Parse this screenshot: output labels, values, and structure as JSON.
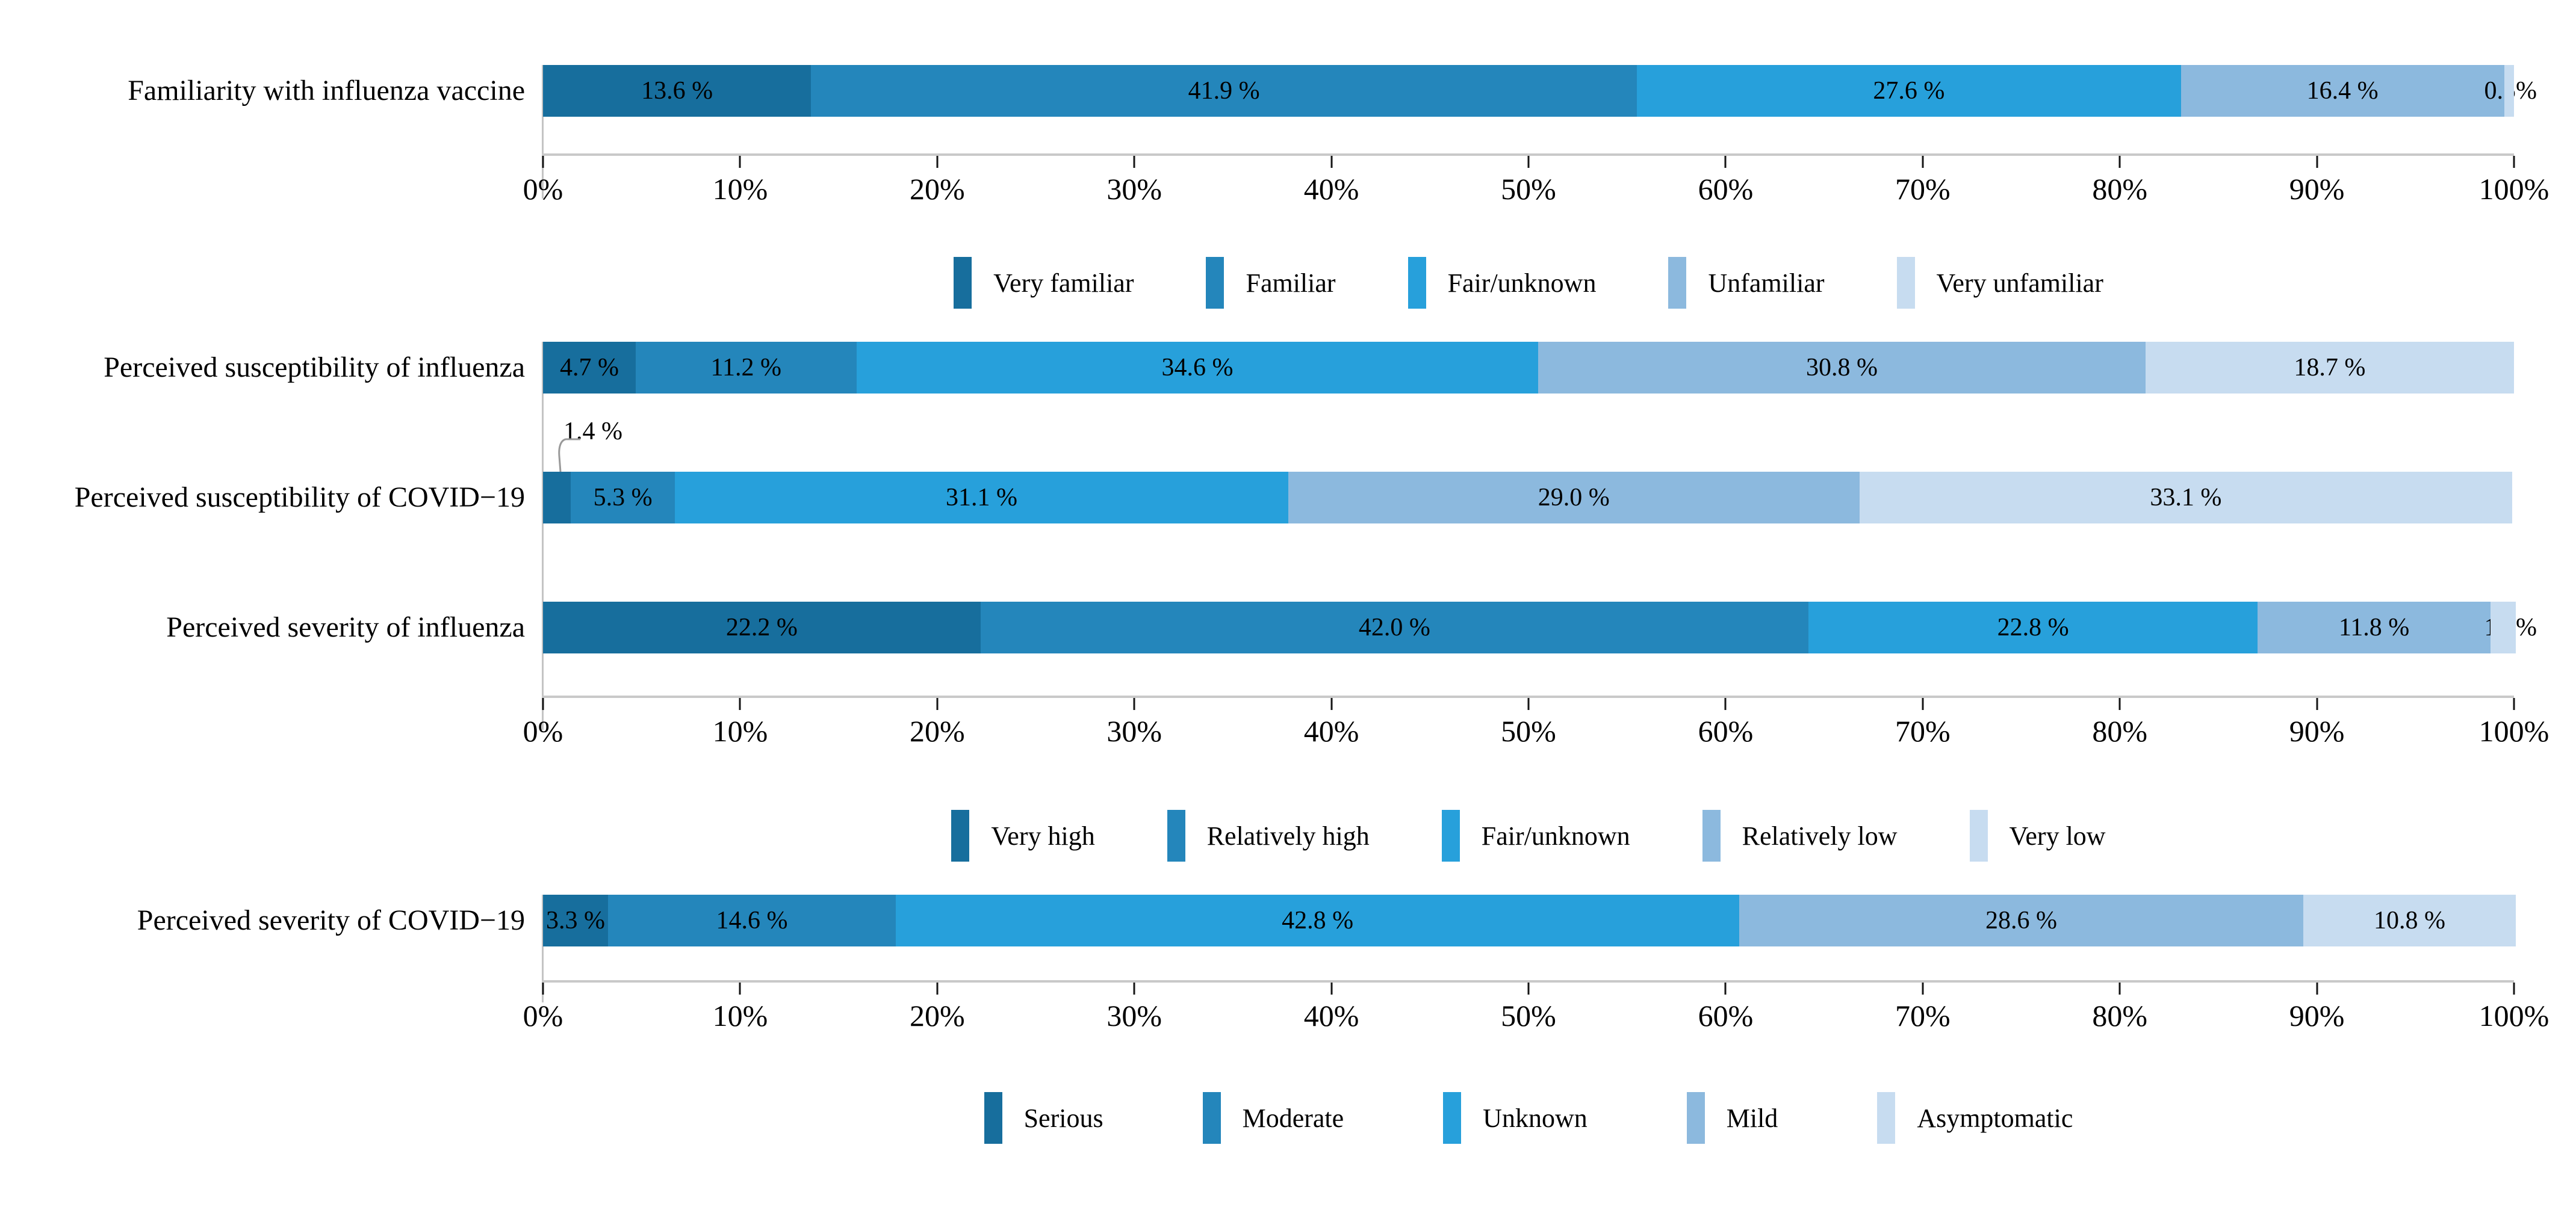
{
  "palette": {
    "segment_colors": [
      "#176e9d",
      "#2486bb",
      "#27a0db",
      "#8cb9de",
      "#c7dcf0"
    ],
    "axis_line": "#c9c9c9",
    "axis_vline": "#c4c4c4",
    "tick_mark": "#151515",
    "leader_line": "#999999",
    "label_text": "#000000"
  },
  "chart_data": [
    {
      "type": "bar",
      "orientation": "horizontal_stacked",
      "title": "",
      "categories": [
        "Familiarity with influenza vaccine"
      ],
      "series": [
        {
          "name": "Very familiar",
          "values": [
            13.6
          ]
        },
        {
          "name": "Familiar",
          "values": [
            41.9
          ]
        },
        {
          "name": "Fair/unknown",
          "values": [
            27.6
          ]
        },
        {
          "name": "Unfamiliar",
          "values": [
            16.4
          ]
        },
        {
          "name": "Very unfamiliar",
          "values": [
            0.5
          ]
        }
      ],
      "value_label_texts": [
        [
          "13.6 %",
          "41.9 %",
          "27.6 %",
          "16.4 %",
          "0.5%"
        ]
      ],
      "label_placements": [
        [
          "center",
          "center",
          "center",
          "center",
          "edge"
        ]
      ],
      "xlim": [
        0,
        100
      ],
      "xticks": [
        "0%",
        "10%",
        "20%",
        "30%",
        "40%",
        "50%",
        "60%",
        "70%",
        "80%",
        "90%",
        "100%"
      ],
      "legend": [
        "Very familiar",
        "Familiar",
        "Fair/unknown",
        "Unfamiliar",
        "Very unfamiliar"
      ],
      "legend_position": "bottom",
      "grid": false
    },
    {
      "type": "bar",
      "orientation": "horizontal_stacked",
      "title": "",
      "categories": [
        "Perceived susceptibility of influenza",
        "Perceived susceptibility of COVID−19",
        "Perceived severity of influenza"
      ],
      "series": [
        {
          "name": "Very high",
          "values": [
            4.7,
            1.4,
            22.2
          ]
        },
        {
          "name": "Relatively high",
          "values": [
            11.2,
            5.3,
            42.0
          ]
        },
        {
          "name": "Fair/unknown",
          "values": [
            34.6,
            31.1,
            22.8
          ]
        },
        {
          "name": "Relatively low",
          "values": [
            30.8,
            29.0,
            11.8
          ]
        },
        {
          "name": "Very low",
          "values": [
            18.7,
            33.1,
            1.3
          ]
        }
      ],
      "value_label_texts": [
        [
          "4.7 %",
          "11.2 %",
          "34.6 %",
          "30.8 %",
          "18.7 %"
        ],
        [
          "1.4 %",
          "5.3 %",
          "31.1 %",
          "29.0 %",
          "33.1 %"
        ],
        [
          "22.2 %",
          "42.0 %",
          "22.8 %",
          "11.8 %",
          "1.3%"
        ]
      ],
      "label_placements": [
        [
          "center",
          "center",
          "center",
          "center",
          "center"
        ],
        [
          "callout",
          "center",
          "center",
          "center",
          "center"
        ],
        [
          "center",
          "center",
          "center",
          "center",
          "edge"
        ]
      ],
      "xlim": [
        0,
        100
      ],
      "xticks": [
        "0%",
        "10%",
        "20%",
        "30%",
        "40%",
        "50%",
        "60%",
        "70%",
        "80%",
        "90%",
        "100%"
      ],
      "legend": [
        "Very high",
        "Relatively high",
        "Fair/unknown",
        "Relatively low",
        "Very low"
      ],
      "legend_position": "bottom",
      "grid": false
    },
    {
      "type": "bar",
      "orientation": "horizontal_stacked",
      "title": "",
      "categories": [
        "Perceived severity of COVID−19"
      ],
      "series": [
        {
          "name": "Serious",
          "values": [
            3.3
          ]
        },
        {
          "name": "Moderate",
          "values": [
            14.6
          ]
        },
        {
          "name": "Unknown",
          "values": [
            42.8
          ]
        },
        {
          "name": "Mild",
          "values": [
            28.6
          ]
        },
        {
          "name": "Asymptomatic",
          "values": [
            10.8
          ]
        }
      ],
      "value_label_texts": [
        [
          "3.3 %",
          "14.6 %",
          "42.8 %",
          "28.6 %",
          "10.8 %"
        ]
      ],
      "label_placements": [
        [
          "center",
          "center",
          "center",
          "center",
          "center"
        ]
      ],
      "xlim": [
        0,
        100
      ],
      "xticks": [
        "0%",
        "10%",
        "20%",
        "30%",
        "40%",
        "50%",
        "60%",
        "70%",
        "80%",
        "90%",
        "100%"
      ],
      "legend": [
        "Serious",
        "Moderate",
        "Unknown",
        "Mild",
        "Asymptomatic"
      ],
      "legend_position": "bottom",
      "grid": false
    }
  ]
}
